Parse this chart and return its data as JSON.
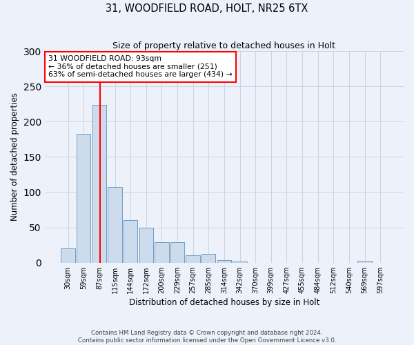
{
  "title1": "31, WOODFIELD ROAD, HOLT, NR25 6TX",
  "title2": "Size of property relative to detached houses in Holt",
  "xlabel": "Distribution of detached houses by size in Holt",
  "ylabel": "Number of detached properties",
  "bin_labels": [
    "30sqm",
    "59sqm",
    "87sqm",
    "115sqm",
    "144sqm",
    "172sqm",
    "200sqm",
    "229sqm",
    "257sqm",
    "285sqm",
    "314sqm",
    "342sqm",
    "370sqm",
    "399sqm",
    "427sqm",
    "455sqm",
    "484sqm",
    "512sqm",
    "540sqm",
    "569sqm",
    "597sqm"
  ],
  "bar_heights": [
    20,
    183,
    224,
    107,
    60,
    50,
    29,
    29,
    10,
    12,
    4,
    2,
    0,
    0,
    0,
    0,
    0,
    0,
    0,
    3,
    0
  ],
  "bar_color": "#ccdcec",
  "bar_edge_color": "#6090be",
  "grid_color": "#c8d4e4",
  "background_color": "#edf2fa",
  "annotation_line1": "31 WOODFIELD ROAD: 93sqm",
  "annotation_line2": "← 36% of detached houses are smaller (251)",
  "annotation_line3": "63% of semi-detached houses are larger (434) →",
  "annotation_box_color": "white",
  "annotation_box_edge": "red",
  "vline_x": 2.07,
  "vline_color": "red",
  "ylim": [
    0,
    300
  ],
  "yticks": [
    0,
    50,
    100,
    150,
    200,
    250,
    300
  ],
  "footer1": "Contains HM Land Registry data © Crown copyright and database right 2024.",
  "footer2": "Contains public sector information licensed under the Open Government Licence v3.0."
}
